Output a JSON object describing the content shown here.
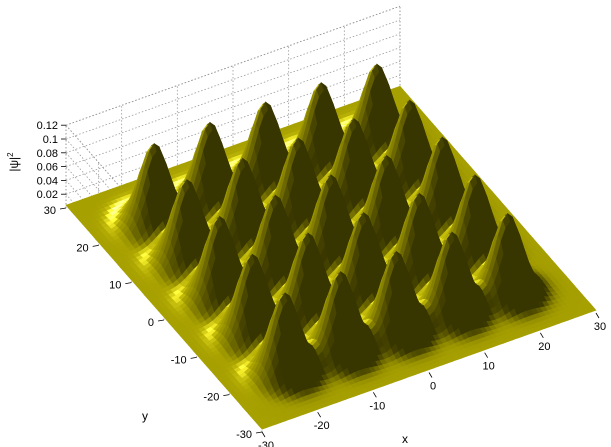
{
  "chart_data": {
    "type": "surface",
    "title": "",
    "xlabel": "x",
    "ylabel": "y",
    "zlabel_main": "|ψ|",
    "zlabel_sup": "2",
    "xlim": [
      -30,
      30
    ],
    "ylim": [
      -30,
      30
    ],
    "zlim": [
      0,
      0.12
    ],
    "x_ticks": [
      -30,
      -20,
      -10,
      0,
      10,
      20,
      30
    ],
    "y_ticks": [
      -30,
      -20,
      -10,
      0,
      10,
      20,
      30
    ],
    "z_ticks": [
      0.02,
      0.04,
      0.06,
      0.08,
      0.1,
      0.12
    ],
    "x_tick_labels": [
      "-30",
      "-20",
      "-10",
      "0",
      "10",
      "20",
      "30"
    ],
    "y_tick_labels": [
      "-30",
      "-20",
      "-10",
      "0",
      "10",
      "20",
      "30"
    ],
    "z_tick_labels": [
      "0.02",
      "0.04",
      "0.06",
      "0.08",
      "0.1",
      "0.12"
    ],
    "lattice": {
      "peak_height": 0.12,
      "spacing": 10,
      "peak_positions_x": [
        -20,
        -10,
        0,
        10,
        20
      ],
      "peak_positions_y": [
        -20,
        -10,
        0,
        10,
        20
      ]
    },
    "surface_color": "#c8c000",
    "grid": true
  }
}
